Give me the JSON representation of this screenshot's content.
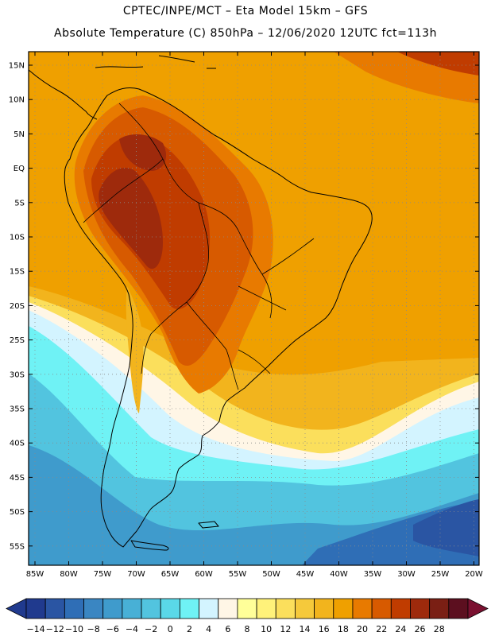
{
  "title": {
    "line1": "CPTEC/INPE/MCT –  Eta Model 15km – GFS",
    "line2": "Absolute Temperature (C) 850hPa – 12/06/2020 12UTC fct=113h"
  },
  "map": {
    "lat_labels": [
      "15N",
      "10N",
      "5N",
      "EQ",
      "5S",
      "10S",
      "15S",
      "20S",
      "25S",
      "30S",
      "35S",
      "40S",
      "45S",
      "50S",
      "55S"
    ],
    "lon_labels": [
      "85W",
      "80W",
      "75W",
      "70W",
      "65W",
      "60W",
      "55W",
      "50W",
      "45W",
      "40W",
      "35W",
      "30W",
      "25W",
      "20W"
    ],
    "region": "South America"
  },
  "colorbar": {
    "ticks": [
      "-14",
      "-12",
      "-10",
      "-8",
      "-6",
      "-4",
      "-2",
      "0",
      "2",
      "4",
      "6",
      "8",
      "10",
      "12",
      "14",
      "16",
      "18",
      "20",
      "22",
      "24",
      "26",
      "28"
    ],
    "unit": "C",
    "colors": [
      "#203a8e",
      "#2a55a3",
      "#2f6eb6",
      "#3a86c2",
      "#3f9bcc",
      "#48b0d6",
      "#52c4df",
      "#5ad8e8",
      "#6ff2f5",
      "#d3f4ff",
      "#fff6e6",
      "#ffff99",
      "#fff27a",
      "#fbdf5c",
      "#f5c93b",
      "#f2b41d",
      "#efa000",
      "#e87a00",
      "#d75a00",
      "#c03c00",
      "#9e2a0c",
      "#7a1f14",
      "#5c0f1f"
    ]
  }
}
